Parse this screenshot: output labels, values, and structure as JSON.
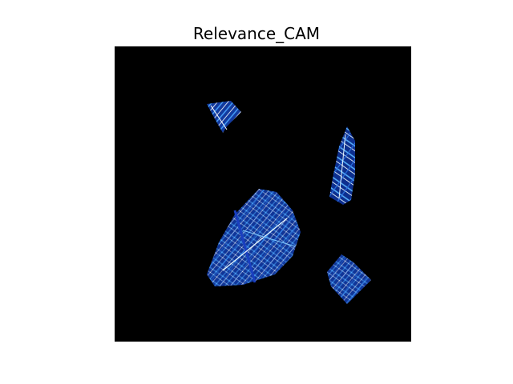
{
  "title": "Relevance_CAM",
  "image": {
    "description_free": true,
    "background_color": "#000000",
    "palette": {
      "deep_blue": "#0a2a8a",
      "mid_blue": "#1f5fd0",
      "light_blue": "#4aa8ff",
      "cyan_white": "#d8f4ff",
      "white": "#ffffff"
    }
  }
}
